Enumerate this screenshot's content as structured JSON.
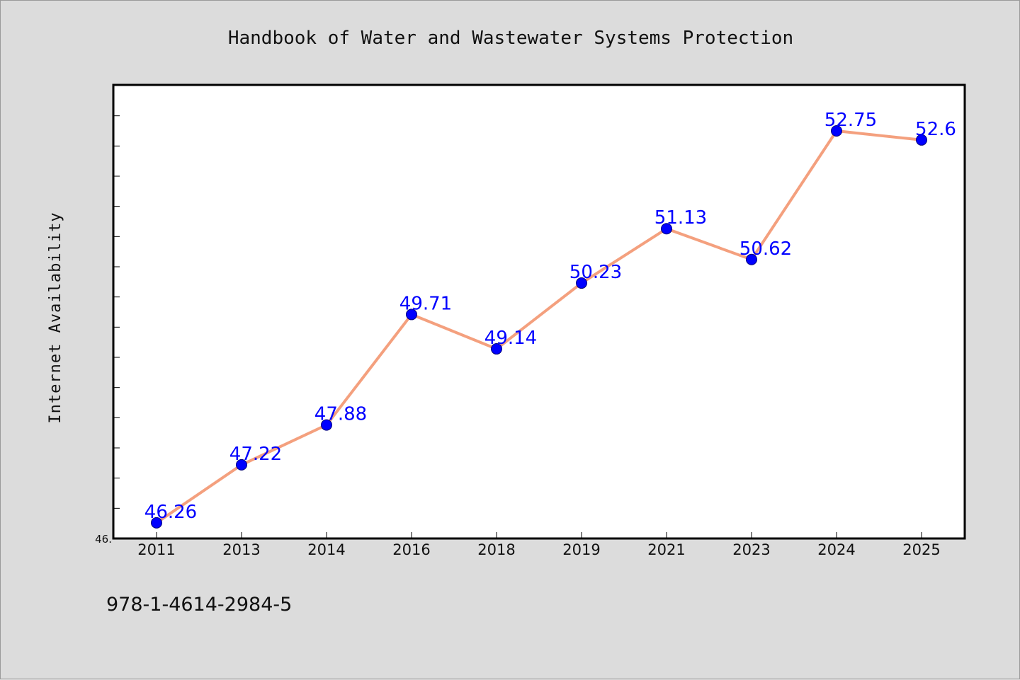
{
  "chart_data": {
    "type": "line",
    "title": "Handbook of Water and Wastewater Systems Protection",
    "xlabel": "",
    "ylabel": "Internet Availability",
    "categories": [
      "2011",
      "2013",
      "2014",
      "2016",
      "2018",
      "2019",
      "2021",
      "2023",
      "2024",
      "2025"
    ],
    "series": [
      {
        "values": [
          46.26,
          47.22,
          47.88,
          49.71,
          49.14,
          50.23,
          51.13,
          50.62,
          52.75,
          52.6
        ]
      }
    ],
    "data_labels": [
      "46.26",
      "47.22",
      "47.88",
      "49.71",
      "49.14",
      "50.23",
      "51.13",
      "50.62",
      "52.75",
      "52.6"
    ],
    "ylim": [
      46.0,
      53.5
    ],
    "y_tick_labels": [
      "46."
    ],
    "grid": false,
    "legend": "none",
    "colors": {
      "line": "#f4a07e",
      "marker": "#0000ff",
      "label": "#0000ff",
      "plot_background": "#ffffff",
      "page_background": "#dcdcdc"
    }
  },
  "footnote": "978-1-4614-2984-5"
}
